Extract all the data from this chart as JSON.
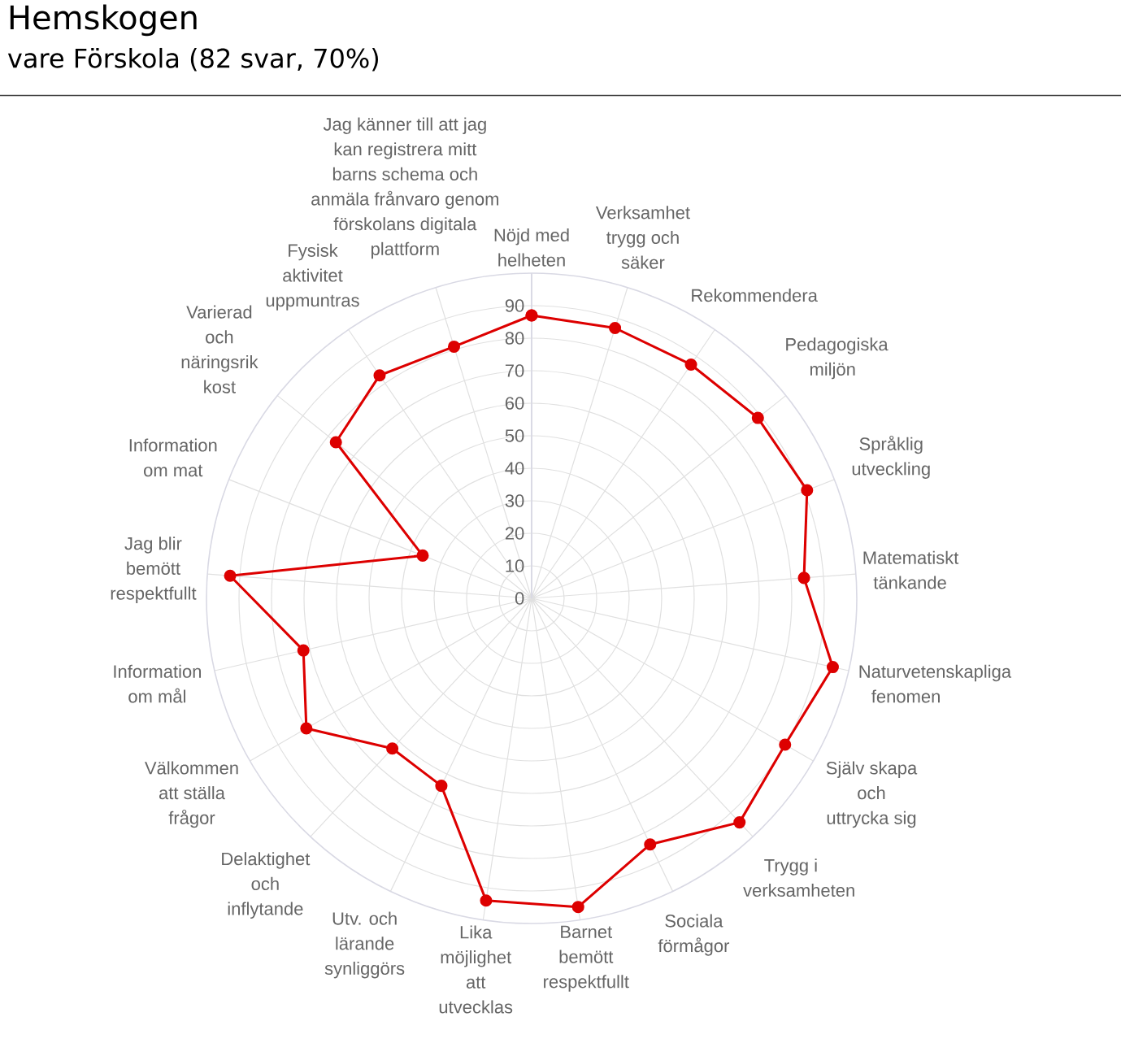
{
  "chart_data": {
    "type": "radar",
    "title": "Hemskogen",
    "subtitle": "vare Förskola  (82 svar, 70%)",
    "categories": [
      "Nöjd med helheten",
      "Verksamhet trygg och säker",
      "Rekommendera",
      "Pedagogiska miljön",
      "Språklig utveckling",
      "Matematiskt tänkande",
      "Naturvetenskapliga fenomen",
      "Själv skapa och uttrycka sig",
      "Trygg i verksamheten",
      "Sociala förmågor",
      "Barnet bemött respektfullt",
      "Lika möjlighet att utvecklas",
      "Utv. och lärande synliggörs",
      "Delaktighet och inflytande",
      "Välkommen att ställa frågor",
      "Information om mål",
      "Jag blir bemött respektfullt",
      "Information om mat",
      "Varierad och näringsrik kost",
      "Fysisk aktivitet uppmuntras",
      "Jag känner till att jag kan registrera mitt barns schema och anmäla frånvaro genom förskolans digitala plattform"
    ],
    "series": [
      {
        "color": "#dd0000",
        "values": [
          87,
          87,
          87,
          89,
          91,
          84,
          95,
          90,
          94,
          84,
          96,
          94,
          64,
          63,
          80,
          72,
          93,
          36,
          77,
          83,
          81
        ]
      }
    ],
    "ylim": [
      0,
      100
    ],
    "yticks": [
      0,
      10,
      20,
      30,
      40,
      50,
      60,
      70,
      80,
      90
    ],
    "grid": true,
    "marker": "circle"
  }
}
